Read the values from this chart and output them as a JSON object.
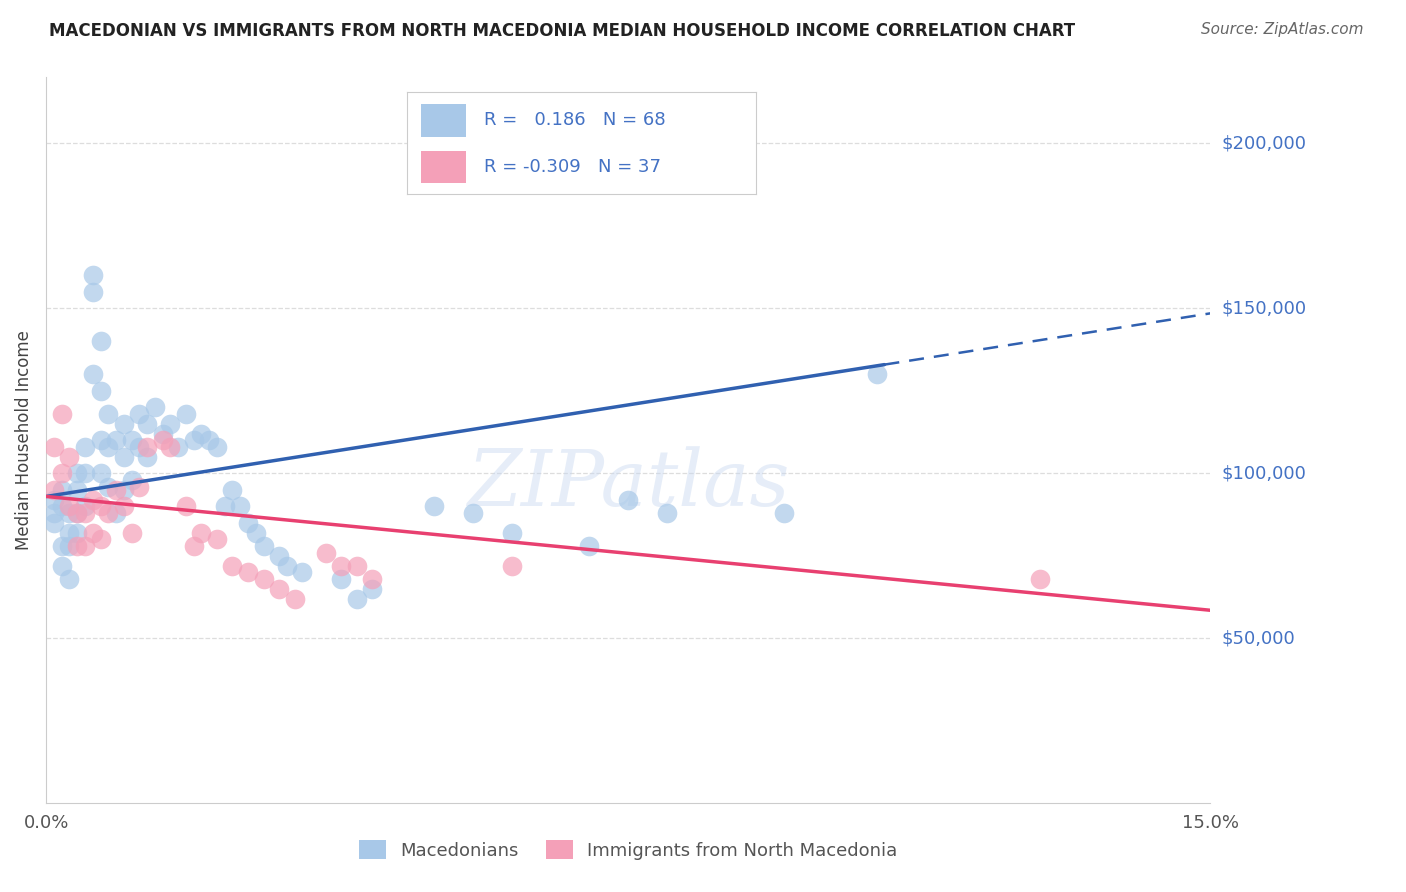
{
  "title": "MACEDONIAN VS IMMIGRANTS FROM NORTH MACEDONIA MEDIAN HOUSEHOLD INCOME CORRELATION CHART",
  "source": "Source: ZipAtlas.com",
  "ylabel": "Median Household Income",
  "xlim": [
    0.0,
    0.15
  ],
  "ylim": [
    0,
    220000
  ],
  "ytick_positions": [
    50000,
    100000,
    150000,
    200000
  ],
  "ytick_labels": [
    "$50,000",
    "$100,000",
    "$150,000",
    "$200,000"
  ],
  "R_blue": 0.186,
  "N_blue": 68,
  "R_pink": -0.309,
  "N_pink": 37,
  "blue_scatter_color": "#A8C8E8",
  "pink_scatter_color": "#F4A0B8",
  "blue_line_color": "#3060B0",
  "pink_line_color": "#E84070",
  "legend_label_blue": "Macedonians",
  "legend_label_pink": "Immigrants from North Macedonia",
  "blue_line_solid_end": 0.108,
  "blue_line_intercept": 93000,
  "blue_line_slope": 370000,
  "pink_line_intercept": 93000,
  "pink_line_slope": -230000,
  "blue_x": [
    0.001,
    0.001,
    0.001,
    0.002,
    0.002,
    0.002,
    0.002,
    0.003,
    0.003,
    0.003,
    0.003,
    0.004,
    0.004,
    0.004,
    0.004,
    0.005,
    0.005,
    0.005,
    0.006,
    0.006,
    0.006,
    0.007,
    0.007,
    0.007,
    0.007,
    0.008,
    0.008,
    0.008,
    0.009,
    0.009,
    0.01,
    0.01,
    0.01,
    0.011,
    0.011,
    0.012,
    0.012,
    0.013,
    0.013,
    0.014,
    0.015,
    0.016,
    0.017,
    0.018,
    0.019,
    0.02,
    0.021,
    0.022,
    0.023,
    0.024,
    0.025,
    0.026,
    0.027,
    0.028,
    0.03,
    0.031,
    0.033,
    0.038,
    0.04,
    0.042,
    0.05,
    0.055,
    0.06,
    0.07,
    0.075,
    0.08,
    0.095,
    0.107
  ],
  "blue_y": [
    92000,
    88000,
    85000,
    95000,
    90000,
    78000,
    72000,
    88000,
    82000,
    78000,
    68000,
    100000,
    95000,
    88000,
    82000,
    108000,
    100000,
    90000,
    155000,
    160000,
    130000,
    140000,
    125000,
    110000,
    100000,
    118000,
    108000,
    96000,
    110000,
    88000,
    115000,
    105000,
    95000,
    110000,
    98000,
    118000,
    108000,
    115000,
    105000,
    120000,
    112000,
    115000,
    108000,
    118000,
    110000,
    112000,
    110000,
    108000,
    90000,
    95000,
    90000,
    85000,
    82000,
    78000,
    75000,
    72000,
    70000,
    68000,
    62000,
    65000,
    90000,
    88000,
    82000,
    78000,
    92000,
    88000,
    88000,
    130000
  ],
  "pink_x": [
    0.001,
    0.001,
    0.002,
    0.002,
    0.003,
    0.003,
    0.004,
    0.004,
    0.005,
    0.005,
    0.006,
    0.006,
    0.007,
    0.007,
    0.008,
    0.009,
    0.01,
    0.011,
    0.012,
    0.013,
    0.015,
    0.016,
    0.018,
    0.019,
    0.02,
    0.022,
    0.024,
    0.026,
    0.028,
    0.03,
    0.032,
    0.036,
    0.038,
    0.04,
    0.042,
    0.06,
    0.128
  ],
  "pink_y": [
    108000,
    95000,
    118000,
    100000,
    105000,
    90000,
    88000,
    78000,
    88000,
    78000,
    92000,
    82000,
    90000,
    80000,
    88000,
    95000,
    90000,
    82000,
    96000,
    108000,
    110000,
    108000,
    90000,
    78000,
    82000,
    80000,
    72000,
    70000,
    68000,
    65000,
    62000,
    76000,
    72000,
    72000,
    68000,
    72000,
    68000
  ]
}
